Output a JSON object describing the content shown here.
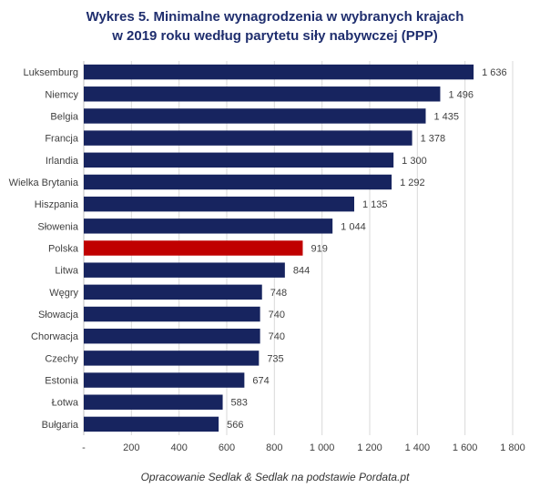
{
  "title_line1": "Wykres 5. Minimalne wynagrodzenia w wybranych krajach",
  "title_line2": "w 2019 roku według parytetu siły nabywczej (PPP)",
  "source": "Opracowanie Sedlak & Sedlak na podstawie Pordata.pt",
  "colors": {
    "bar": "#17245f",
    "highlight": "#c00000",
    "grid": "#d9d9d9",
    "title": "#1f2e6e"
  },
  "chart_data": {
    "type": "bar",
    "orientation": "horizontal",
    "categories": [
      "Luksemburg",
      "Niemcy",
      "Belgia",
      "Francja",
      "Irlandia",
      "Wielka Brytania",
      "Hiszpania",
      "Słowenia",
      "Polska",
      "Litwa",
      "Węgry",
      "Słowacja",
      "Chorwacja",
      "Czechy",
      "Estonia",
      "Łotwa",
      "Bułgaria"
    ],
    "values": [
      1636,
      1496,
      1435,
      1378,
      1300,
      1292,
      1135,
      1044,
      919,
      844,
      748,
      740,
      740,
      735,
      674,
      583,
      566
    ],
    "value_labels": [
      "1 636",
      "1 496",
      "1 435",
      "1 378",
      "1 300",
      "1 292",
      "1 135",
      "1 044",
      "919",
      "844",
      "748",
      "740",
      "740",
      "735",
      "674",
      "583",
      "566"
    ],
    "highlight": "Polska",
    "xlim": [
      0,
      1800
    ],
    "x_ticks": [
      0,
      200,
      400,
      600,
      800,
      1000,
      1200,
      1400,
      1600,
      1800
    ],
    "x_tick_labels": [
      "-",
      "200",
      "400",
      "600",
      "800",
      "1 000",
      "1 200",
      "1 400",
      "1 600",
      "1 800"
    ],
    "grid": true,
    "legend": "none"
  }
}
